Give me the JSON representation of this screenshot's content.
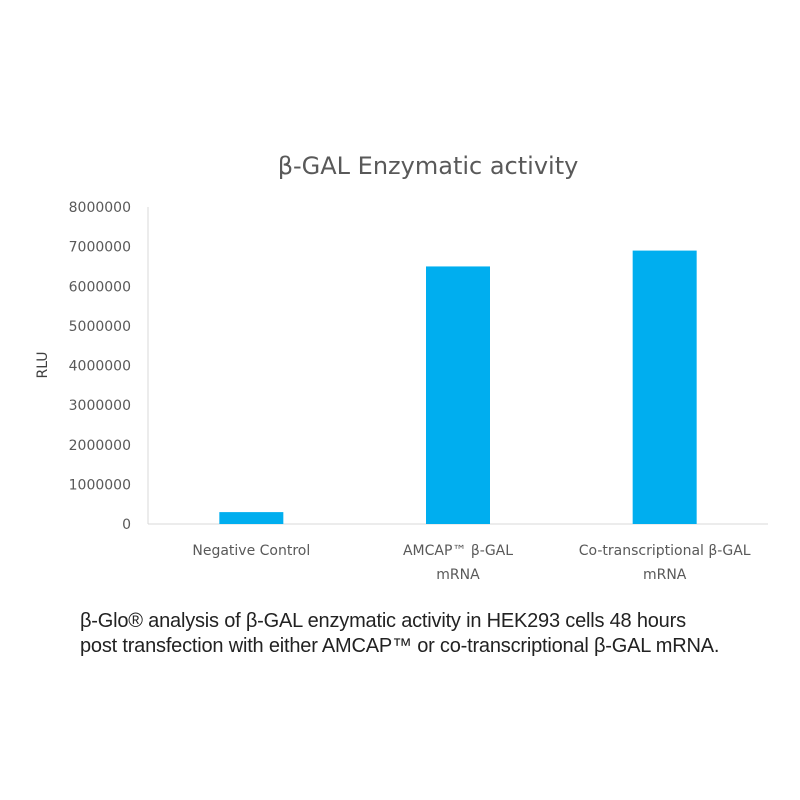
{
  "chart_data": {
    "type": "bar",
    "title": "β-GAL Enzymatic activity",
    "ylabel": "RLU",
    "xlabel": "",
    "categories": [
      [
        "Negative Control"
      ],
      [
        "AMCAP™ β-GAL",
        "mRNA"
      ],
      [
        "Co-transcriptional β-GAL",
        "mRNA"
      ]
    ],
    "values": [
      300000,
      6500000,
      6900000
    ],
    "ylim": [
      0,
      8000000
    ],
    "yticks": [
      "0",
      "1000000",
      "2000000",
      "3000000",
      "4000000",
      "5000000",
      "6000000",
      "7000000",
      "8000000"
    ],
    "bar_color": "#00AEEF",
    "grid": false,
    "legend": "none"
  },
  "caption": {
    "line1": "β-Glo® analysis of β-GAL enzymatic activity in HEK293 cells 48 hours",
    "line2": "post transfection with either AMCAP™ or co-transcriptional β-GAL mRNA."
  }
}
